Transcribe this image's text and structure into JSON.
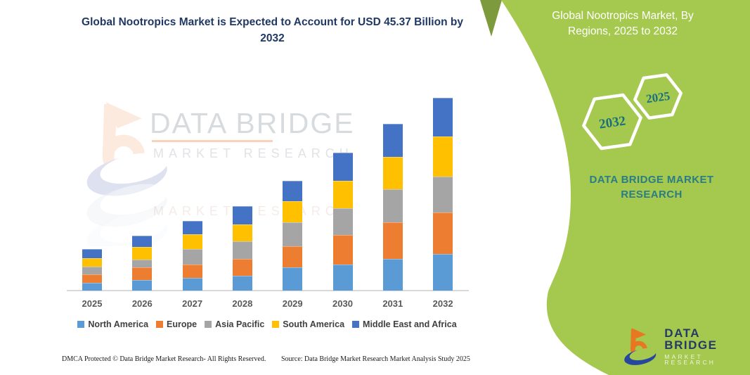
{
  "chart_data": {
    "type": "bar",
    "stacked": true,
    "title": "Global Nootropics Market is Expected to Account for USD 45.37 Billion by 2032",
    "unit": "USD Billion",
    "categories": [
      "2025",
      "2026",
      "2027",
      "2028",
      "2029",
      "2030",
      "2031",
      "2032"
    ],
    "series": [
      {
        "name": "North America",
        "color": "#5b9bd5",
        "values": [
          1.8,
          2.5,
          3.0,
          3.4,
          5.5,
          6.1,
          7.5,
          8.6
        ]
      },
      {
        "name": "Europe",
        "color": "#ed7d31",
        "values": [
          2.0,
          2.9,
          3.2,
          4.1,
          5.0,
          7.0,
          8.6,
          9.7
        ]
      },
      {
        "name": "Asia Pacific",
        "color": "#a5a5a5",
        "values": [
          1.8,
          1.9,
          3.6,
          4.1,
          5.5,
          6.3,
          7.7,
          8.6
        ]
      },
      {
        "name": "South America",
        "color": "#ffc000",
        "values": [
          2.0,
          3.0,
          3.5,
          3.9,
          5.0,
          6.5,
          7.7,
          9.4
        ]
      },
      {
        "name": "Middle East and Africa",
        "color": "#4472c4",
        "values": [
          2.1,
          2.6,
          3.1,
          4.3,
          4.9,
          6.6,
          7.8,
          9.07
        ]
      }
    ],
    "totals_note": "2032 total = 45.37",
    "xlabel": "",
    "ylabel": "",
    "y_axis_visible": false,
    "grid": false,
    "legend_position": "bottom"
  },
  "footer": {
    "dmca": "DMCA Protected © Data Bridge Market Research-  All Rights Reserved.",
    "source": "Source: Data Bridge Market Research  Market Analysis Study 2025"
  },
  "watermark": {
    "text_primary": "DATA BRIDGE",
    "text_secondary": "MARKET RESEARCH",
    "text_reflection": "MARKET RESEARCH"
  },
  "sidebar": {
    "title": "Global Nootropics Market, By Regions, 2025 to 2032",
    "hexagon_back_label": "2032",
    "hexagon_front_label": "2025",
    "brand_text": "DATA BRIDGE MARKET RESEARCH",
    "logo_name": "DATA BRIDGE",
    "logo_tagline": "MARKET RESEARCH"
  },
  "colors": {
    "panel_green": "#a5c84e",
    "panel_dark_green": "#7d9a3c",
    "teal_text": "#2b7d85",
    "title_navy": "#1f3864",
    "logo_orange": "#e87722",
    "logo_blue": "#27479e"
  }
}
